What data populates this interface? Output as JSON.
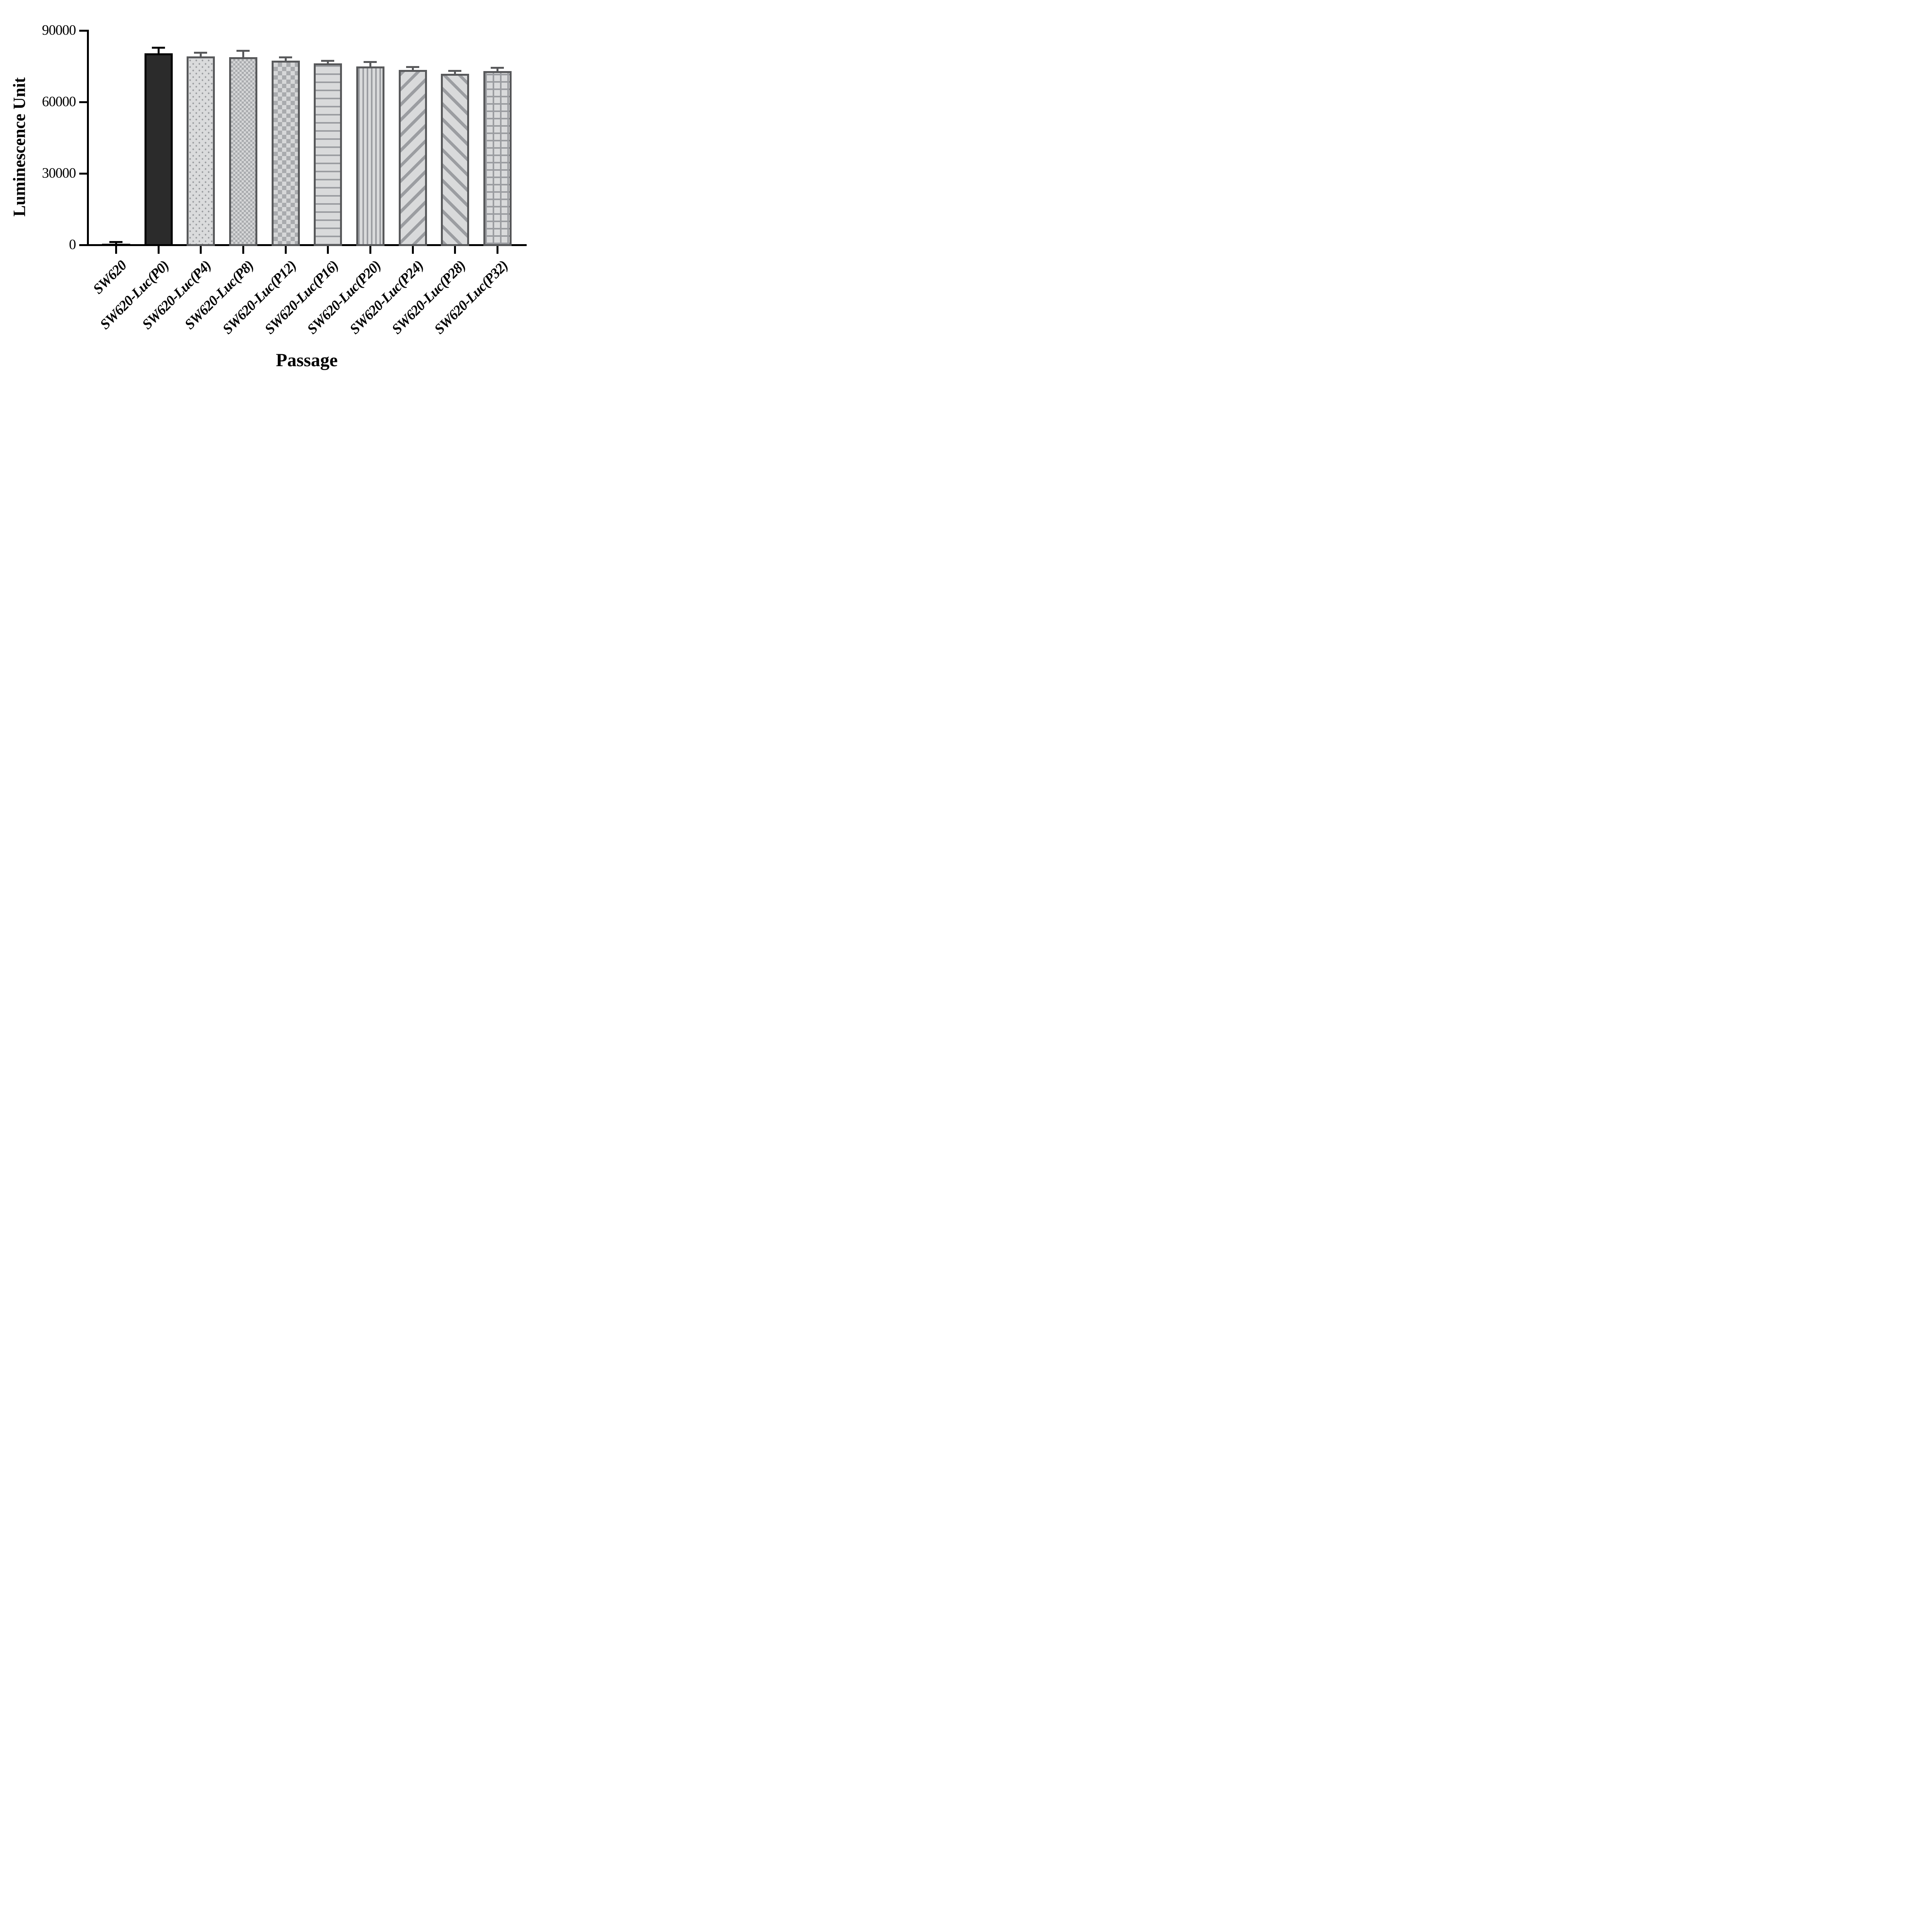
{
  "chart_data": {
    "type": "bar",
    "title": "",
    "xlabel": "Passage",
    "ylabel": "Luminescence Unit",
    "ylim": [
      0,
      90000
    ],
    "yticks": [
      "0",
      "30000",
      "60000",
      "90000"
    ],
    "ytick_values": [
      0,
      30000,
      60000,
      90000
    ],
    "grid": false,
    "legend": "none",
    "categories": [
      "SW620",
      "SW620-Luc(P0)",
      "SW620-Luc(P4)",
      "SW620-Luc(P8)",
      "SW620-Luc(P12)",
      "SW620-Luc(P16)",
      "SW620-Luc(P20)",
      "SW620-Luc(P24)",
      "SW620-Luc(P28)",
      "SW620-Luc(P32)"
    ],
    "series": [
      {
        "name": "Luminescence Unit",
        "values": [
          500,
          80500,
          79200,
          78800,
          77400,
          76200,
          74900,
          73500,
          71900,
          72900
        ],
        "errors_plus": [
          300,
          1800,
          1000,
          2300,
          900,
          700,
          1500,
          700,
          700,
          1100
        ]
      }
    ],
    "bar_patterns": [
      "solid-black",
      "solid-dark",
      "dots",
      "checker-fine",
      "checker-coarse",
      "h-lines",
      "v-lines",
      "diag-up",
      "diag-down",
      "grid"
    ],
    "colors": {
      "axis": "#000000",
      "bar_black_fill": "#2b2b2b",
      "bar_black_edge": "#000000",
      "bar_gray_edge": "#58595b",
      "bar_light_fill": "#d9dadb",
      "pattern_gray": "#9b9da1"
    }
  }
}
